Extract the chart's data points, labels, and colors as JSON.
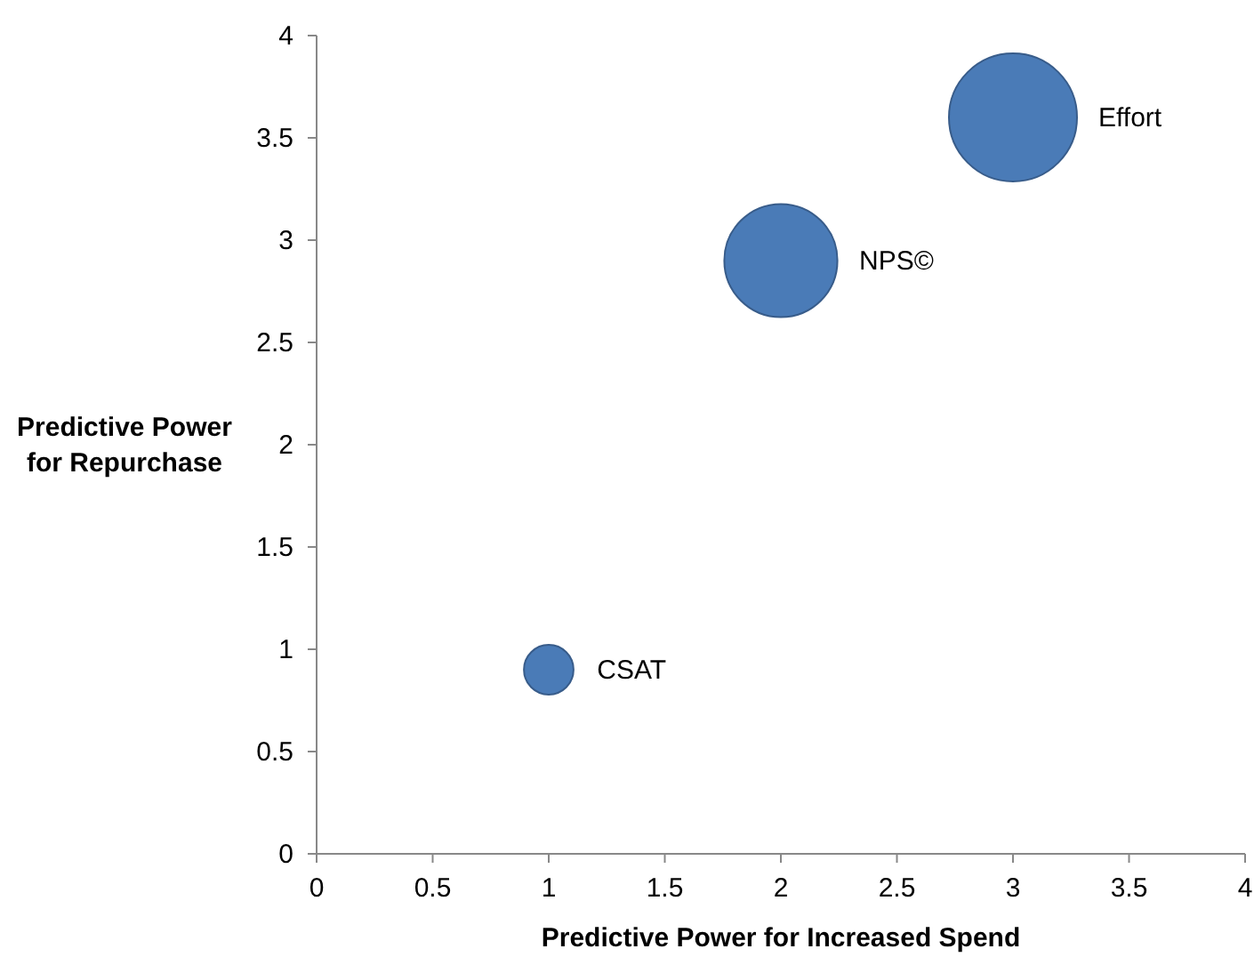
{
  "chart_data": {
    "type": "bubble",
    "xlabel": "Predictive Power for Increased Spend",
    "ylabel": "Predictive Power\nfor Repurchase",
    "xlim": [
      0,
      4
    ],
    "ylim": [
      0,
      4
    ],
    "xticks": [
      0,
      0.5,
      1,
      1.5,
      2,
      2.5,
      3,
      3.5,
      4
    ],
    "yticks": [
      0,
      0.5,
      1,
      1.5,
      2,
      2.5,
      3,
      3.5,
      4
    ],
    "grid": false,
    "series": [
      {
        "name": "CSAT",
        "color": "#4a7bb7",
        "x": [
          1
        ],
        "values": [
          0.9
        ],
        "sizes": [
          0.15
        ]
      },
      {
        "name": "NPS©",
        "color": "#4a7bb7",
        "x": [
          2
        ],
        "values": [
          2.9
        ],
        "sizes": [
          0.78
        ]
      },
      {
        "name": "Effort",
        "color": "#4a7bb7",
        "x": [
          3
        ],
        "values": [
          3.6
        ],
        "sizes": [
          1
        ]
      }
    ]
  }
}
